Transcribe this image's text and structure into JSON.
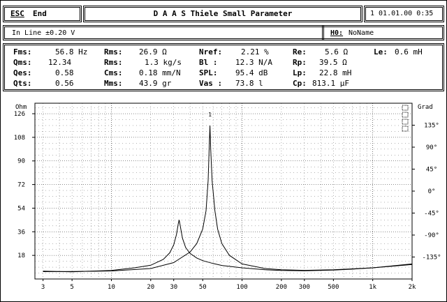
{
  "header": {
    "esc_key": "ESC",
    "esc_label": "End",
    "title": "D A A S  Thiele Small Parameter",
    "datetime": "1 01.01.00 0:35"
  },
  "info": {
    "in_line": "In Line ±0.20 V",
    "h0_key": "H0:",
    "h0_value": "NoName"
  },
  "params": [
    {
      "label": "Fms:",
      "value": "56.8 Hz"
    },
    {
      "label": "Rms:",
      "value": "26.9 Ω"
    },
    {
      "label": "Nref:",
      "value": "2.21 %"
    },
    {
      "label": "Re:",
      "value": "5.6 Ω"
    },
    {
      "label": "Le:",
      "value": "0.6 mH"
    },
    {
      "label": "Qms:",
      "value": "12.34"
    },
    {
      "label": "Rms:",
      "value": "1.3 kg/s"
    },
    {
      "label": "Bl :",
      "value": "12.3 N/A"
    },
    {
      "label": "Rp:",
      "value": "39.5 Ω"
    },
    {
      "label": "Qes:",
      "value": "0.58"
    },
    {
      "label": "Cms:",
      "value": "0.18 mm/N"
    },
    {
      "label": "SPL:",
      "value": "95.4 dB"
    },
    {
      "label": "Lp:",
      "value": "22.8 mH"
    },
    {
      "label": "Qts:",
      "value": "0.56"
    },
    {
      "label": "Mms:",
      "value": "43.9 gr"
    },
    {
      "label": "Vas :",
      "value": "73.8 l"
    },
    {
      "label": "Cp:",
      "value": "813.1 µF"
    }
  ],
  "chart_data": {
    "type": "line",
    "x_scale": "log",
    "xlim": [
      2.6,
      2000
    ],
    "ylim": [
      0,
      134
    ],
    "y2lim": [
      -180,
      180
    ],
    "ylabel": "Ohm",
    "y2label": "Grad",
    "x_ticks": [
      {
        "v": 3,
        "label": "3"
      },
      {
        "v": 5,
        "label": "5"
      },
      {
        "v": 10,
        "label": "10"
      },
      {
        "v": 20,
        "label": "20"
      },
      {
        "v": 30,
        "label": "30"
      },
      {
        "v": 50,
        "label": "50"
      },
      {
        "v": 100,
        "label": "100"
      },
      {
        "v": 200,
        "label": "200"
      },
      {
        "v": 300,
        "label": "300"
      },
      {
        "v": 500,
        "label": "500"
      },
      {
        "v": 1000,
        "label": "1k"
      },
      {
        "v": 2000,
        "label": "2k"
      }
    ],
    "y_ticks": [
      {
        "v": 18,
        "label": "18"
      },
      {
        "v": 36,
        "label": "36"
      },
      {
        "v": 54,
        "label": "54"
      },
      {
        "v": 72,
        "label": "72"
      },
      {
        "v": 90,
        "label": "90"
      },
      {
        "v": 108,
        "label": "108"
      },
      {
        "v": 126,
        "label": "126"
      }
    ],
    "y2_ticks": [
      {
        "v": 135,
        "label": "135°"
      },
      {
        "v": 90,
        "label": "90°"
      },
      {
        "v": 45,
        "label": "45°"
      },
      {
        "v": 0,
        "label": "0°"
      },
      {
        "v": -45,
        "label": "-45°"
      },
      {
        "v": -90,
        "label": "-90°"
      },
      {
        "v": -135,
        "label": "-135°"
      }
    ],
    "series": [
      {
        "points": [
          [
            3,
            5.6
          ],
          [
            5,
            5.7
          ],
          [
            10,
            6.1
          ],
          [
            20,
            8.0
          ],
          [
            30,
            12.5
          ],
          [
            40,
            20.5
          ],
          [
            45,
            27
          ],
          [
            50,
            38
          ],
          [
            53,
            52
          ],
          [
            55,
            75
          ],
          [
            56,
            100
          ],
          [
            56.8,
            117
          ],
          [
            57.5,
            100
          ],
          [
            59,
            75
          ],
          [
            62,
            52
          ],
          [
            65,
            38
          ],
          [
            70,
            27
          ],
          [
            80,
            18
          ],
          [
            100,
            11.5
          ],
          [
            150,
            8
          ],
          [
            200,
            7
          ],
          [
            300,
            6.6
          ],
          [
            500,
            7
          ],
          [
            1000,
            8.5
          ],
          [
            2000,
            11
          ]
        ]
      },
      {
        "points": [
          [
            3,
            6
          ],
          [
            5,
            5.5
          ],
          [
            7,
            6
          ],
          [
            10,
            6.5
          ],
          [
            15,
            8.5
          ],
          [
            20,
            10.5
          ],
          [
            25,
            15
          ],
          [
            28,
            20
          ],
          [
            30,
            26
          ],
          [
            31.5,
            34
          ],
          [
            32.5,
            42
          ],
          [
            33,
            45
          ],
          [
            33.6,
            41
          ],
          [
            35,
            31
          ],
          [
            37,
            24
          ],
          [
            40,
            19.5
          ],
          [
            45,
            16
          ],
          [
            50,
            14
          ],
          [
            60,
            11.8
          ],
          [
            70,
            10.3
          ],
          [
            100,
            8.5
          ],
          [
            150,
            7
          ],
          [
            200,
            6.5
          ],
          [
            300,
            6.3
          ],
          [
            500,
            6.8
          ],
          [
            700,
            7.5
          ],
          [
            1000,
            8.5
          ],
          [
            2000,
            11.5
          ]
        ]
      }
    ],
    "peak_marker": {
      "x": 56.8,
      "label": "1"
    }
  }
}
